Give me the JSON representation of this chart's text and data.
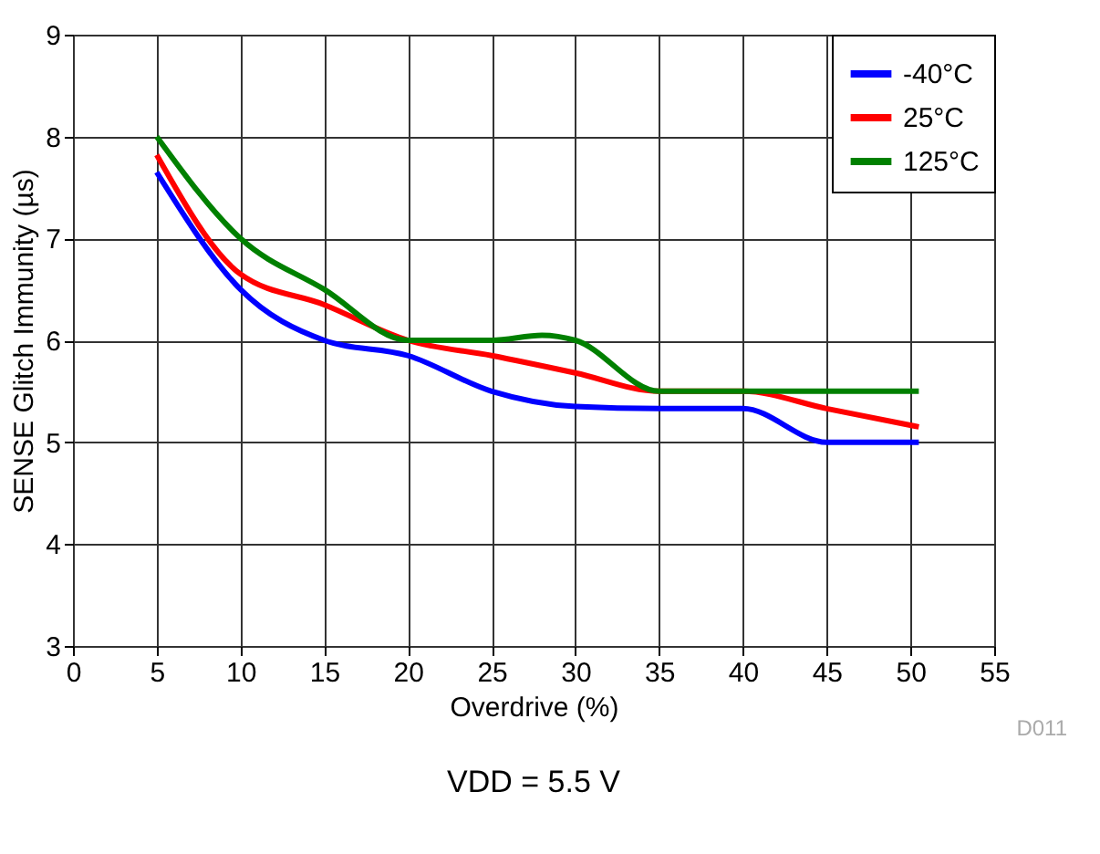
{
  "chart_data": {
    "type": "line",
    "xlabel": "Overdrive (%)",
    "ylabel": "SENSE Glitch Immunity (µs)",
    "xlim": [
      0,
      55
    ],
    "xticks": [
      0,
      5,
      10,
      15,
      20,
      25,
      30,
      35,
      40,
      45,
      50,
      55
    ],
    "ylim": [
      3,
      9
    ],
    "yticks": [
      3,
      4,
      5,
      6,
      7,
      8,
      9
    ],
    "grid": true,
    "legend": "top right",
    "line_style": "solid",
    "marker": "none",
    "series": [
      {
        "name": "-40°C",
        "color": "#0000ff",
        "x": [
          5,
          10,
          15,
          20,
          25,
          30,
          35,
          40,
          45,
          50.5
        ],
        "values": [
          7.65,
          6.5,
          6.0,
          5.85,
          5.5,
          5.35,
          5.33,
          5.33,
          5.0,
          5.0
        ]
      },
      {
        "name": "25°C",
        "color": "#ff0000",
        "x": [
          5,
          10,
          15,
          20,
          25,
          30,
          35,
          40,
          45,
          50.5
        ],
        "values": [
          7.82,
          6.65,
          6.35,
          6.0,
          5.85,
          5.68,
          5.5,
          5.5,
          5.33,
          5.15
        ]
      },
      {
        "name": "125°C",
        "color": "#008000",
        "x": [
          5,
          10,
          15,
          20,
          25,
          28,
          30,
          35,
          40,
          45,
          50.5
        ],
        "values": [
          8.0,
          7.0,
          6.5,
          6.0,
          6.0,
          6.05,
          6.0,
          5.5,
          5.5,
          5.5,
          5.5
        ]
      }
    ],
    "annotations": [
      "D011",
      "VDD = 5.5 V"
    ]
  }
}
